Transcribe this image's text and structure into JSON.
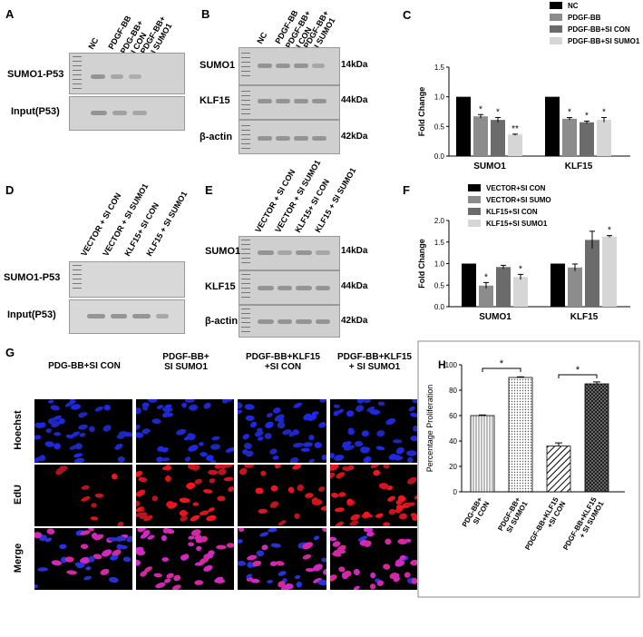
{
  "panels": {
    "A": {
      "letter": "A",
      "lanes": [
        "NC",
        "PDGF-BB",
        "PDG-BB+\nSI CON",
        "PDGF-BB+\nSI SUMO1"
      ],
      "rows": [
        "SUMO1-P53",
        "Input(P53)"
      ]
    },
    "B": {
      "letter": "B",
      "lanes": [
        "NC",
        "PDGF-BB",
        "PDGF-BB+\nSI CON",
        "PDGF-BB+\nSI SUMO1"
      ],
      "rows": [
        "SUMO1",
        "KLF15",
        "β-actin"
      ],
      "kda": [
        "14kDa",
        "44kDa",
        "42kDa"
      ]
    },
    "D": {
      "letter": "D",
      "lanes": [
        "VECTOR + SI CON",
        "VECTOR + SI SUMO1",
        "KLF15+ SI CON",
        "KLF15 + SI SUMO1"
      ],
      "rows": [
        "SUMO1-P53",
        "Input(P53)"
      ]
    },
    "E": {
      "letter": "E",
      "lanes": [
        "VECTOR + SI CON",
        "VECTOR + SI SUMO1",
        "KLF15+ SI CON",
        "KLF15 + SI SUMO1"
      ],
      "rows": [
        "SUMO1",
        "KLF15",
        "β-actin"
      ],
      "kda": [
        "14kDa",
        "44kDa",
        "42kDa"
      ]
    },
    "G": {
      "letter": "G",
      "cols": [
        "PDG-BB+SI CON",
        "PDGF-BB+\nSI SUMO1",
        "PDGF-BB+KLF15\n+SI CON",
        "PDGF-BB+KLF15\n+ SI SUMO1"
      ],
      "rows": [
        "Hoechst",
        "EdU",
        "Merge"
      ]
    }
  },
  "chart_data": [
    {
      "id": "C",
      "letter": "C",
      "type": "bar",
      "ylabel": "Fold Change",
      "ylim": [
        0,
        1.5
      ],
      "yticks": [
        "0.0",
        "0.5",
        "1.0",
        "1.5"
      ],
      "categories": [
        "SUMO1",
        "KLF15"
      ],
      "series": [
        {
          "name": "NC",
          "color": "#000000",
          "values": [
            1.0,
            1.0
          ],
          "err": [
            0,
            0
          ],
          "sig": [
            "",
            ""
          ]
        },
        {
          "name": "PDGF-BB",
          "color": "#8c8c8c",
          "values": [
            0.67,
            0.63
          ],
          "err": [
            0.03,
            0.02
          ],
          "sig": [
            "*",
            "*"
          ]
        },
        {
          "name": "PDGF-BB+SI CON",
          "color": "#6b6b6b",
          "values": [
            0.61,
            0.57
          ],
          "err": [
            0.04,
            0.02
          ],
          "sig": [
            "*",
            "*"
          ]
        },
        {
          "name": "PDGF-BB+SI SUMO1",
          "color": "#d6d6d6",
          "values": [
            0.36,
            0.61
          ],
          "err": [
            0.01,
            0.04
          ],
          "sig": [
            "**",
            "*"
          ]
        }
      ]
    },
    {
      "id": "F",
      "letter": "F",
      "type": "bar",
      "ylabel": "Fold Change",
      "ylim": [
        0,
        2.0
      ],
      "yticks": [
        "0.0",
        "0.5",
        "1.0",
        "1.5",
        "2.0"
      ],
      "categories": [
        "SUMO1",
        "KLF15"
      ],
      "series": [
        {
          "name": "VECTOR+SI CON",
          "color": "#000000",
          "values": [
            1.0,
            1.0
          ],
          "err": [
            0,
            0
          ],
          "sig": [
            "",
            ""
          ]
        },
        {
          "name": "VECTOR+SI SUMO",
          "color": "#8c8c8c",
          "values": [
            0.49,
            0.91
          ],
          "err": [
            0.07,
            0.08
          ],
          "sig": [
            "*",
            ""
          ]
        },
        {
          "name": "KLF15+SI CON",
          "color": "#6b6b6b",
          "values": [
            0.92,
            1.55
          ],
          "err": [
            0.04,
            0.2
          ],
          "sig": [
            "",
            ""
          ]
        },
        {
          "name": "KLF15+SI SUMO1",
          "color": "#d6d6d6",
          "values": [
            0.69,
            1.63
          ],
          "err": [
            0.06,
            0.02
          ],
          "sig": [
            "*",
            "*"
          ]
        }
      ]
    },
    {
      "id": "H",
      "letter": "H",
      "type": "bar",
      "ylabel": "Percentage  Proliferation",
      "ylim": [
        0,
        100
      ],
      "yticks": [
        "0",
        "20",
        "40",
        "60",
        "80",
        "100"
      ],
      "categories": [
        "PDG-BB+\nSI CON",
        "PDGF-BB+\nSI SUMO1",
        "PDGF-BB+KLF15\n+SI CON",
        "PDGF-BB+KLF15\n+ SI SUMO1"
      ],
      "values": [
        60,
        90,
        36,
        85
      ],
      "err": [
        0.5,
        0.5,
        2.5,
        1.5
      ],
      "sig": "*"
    }
  ]
}
